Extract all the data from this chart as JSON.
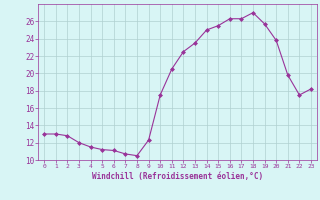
{
  "x": [
    0,
    1,
    2,
    3,
    4,
    5,
    6,
    7,
    8,
    9,
    10,
    11,
    12,
    13,
    14,
    15,
    16,
    17,
    18,
    19,
    20,
    21,
    22,
    23
  ],
  "y": [
    13,
    13,
    12.8,
    12,
    11.5,
    11.2,
    11.1,
    10.7,
    10.5,
    12.3,
    17.5,
    20.5,
    22.5,
    23.5,
    25.0,
    25.5,
    26.3,
    26.3,
    27.0,
    25.7,
    23.8,
    19.8,
    17.5,
    18.2
  ],
  "line_color": "#993399",
  "marker": "D",
  "marker_size": 2,
  "bg_color": "#d8f5f5",
  "grid_color": "#b0d0d0",
  "xlabel": "Windchill (Refroidissement éolien,°C)",
  "ylim": [
    10,
    28
  ],
  "yticks": [
    10,
    12,
    14,
    16,
    18,
    20,
    22,
    24,
    26
  ],
  "xticks": [
    0,
    1,
    2,
    3,
    4,
    5,
    6,
    7,
    8,
    9,
    10,
    11,
    12,
    13,
    14,
    15,
    16,
    17,
    18,
    19,
    20,
    21,
    22,
    23
  ],
  "label_color": "#993399",
  "tick_color": "#993399",
  "spine_color": "#993399"
}
